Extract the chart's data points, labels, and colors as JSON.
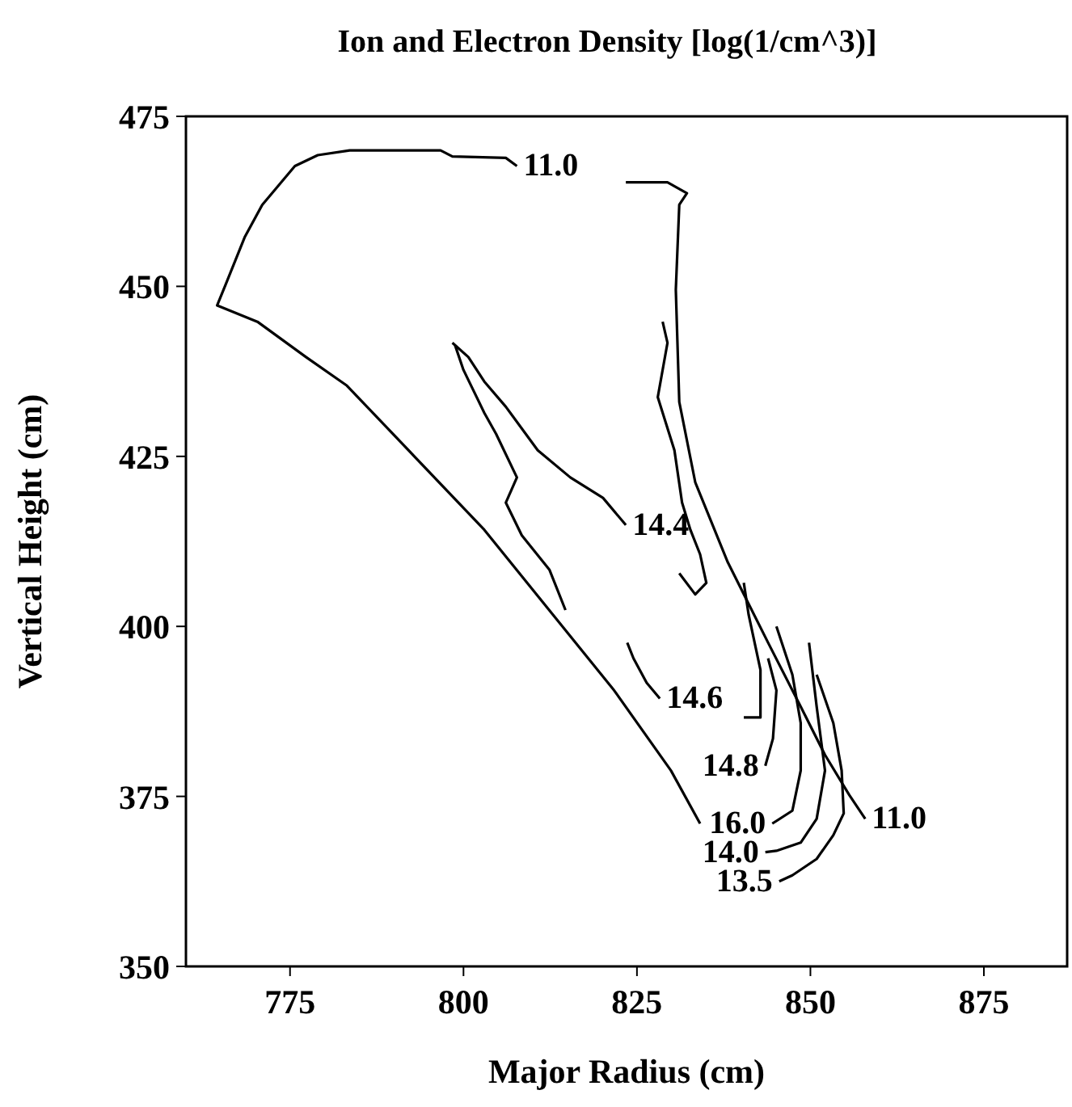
{
  "chart_data": {
    "type": "line",
    "title": "Ion and Electron Density [log(1/cm^3)]",
    "xlabel": "Major Radius (cm)",
    "ylabel": "Vertical Height (cm)",
    "xlim": [
      760,
      887
    ],
    "xticks": [
      775,
      800,
      825,
      850,
      875
    ],
    "ylim": [
      350,
      475
    ],
    "yticks": [
      350,
      375,
      400,
      425,
      450,
      475
    ],
    "marker": "none",
    "line_style": "solid",
    "series": [
      {
        "color": "#000000",
        "x": [
          834.1,
          829.9,
          821.7,
          803,
          783.2,
          777.3,
          770.3,
          764.5,
          765.7,
          768.5,
          771,
          775.7,
          779,
          783.6,
          796.7,
          798.4,
          806.1,
          807.7
        ],
        "values": [
          371,
          378.8,
          390.6,
          414.2,
          435.4,
          439.6,
          444.8,
          447.2,
          450.2,
          457.3,
          462,
          467.7,
          469.3,
          470,
          470,
          469.1,
          468.9,
          467.7
        ]
      },
      {
        "color": "#000000",
        "x": [
          823.4,
          829.4,
          832.2,
          831.1,
          830.6,
          831.1,
          833.4,
          838.1,
          843.9,
          848.6,
          852.1,
          855.6,
          857.9
        ],
        "values": [
          465.3,
          465.3,
          463.7,
          462,
          449.5,
          433,
          421.2,
          409.4,
          397.6,
          388.2,
          381.1,
          375.2,
          371.7
        ]
      },
      {
        "color": "#000000",
        "x": [
          828.7,
          829.4,
          828,
          830.4,
          831.5,
          832.7,
          834.1,
          835,
          833.4,
          831.1,
          null,
          798.4,
          800.7,
          803,
          806.1,
          810.7,
          815.4,
          820.1,
          823.4
        ],
        "values": [
          444.8,
          441.7,
          433.7,
          425.9,
          418.2,
          414.2,
          410.6,
          406.4,
          404.7,
          407.8,
          null,
          441.7,
          439.6,
          436,
          432.3,
          425.9,
          421.9,
          418.9,
          414.9
        ]
      },
      {
        "color": "#000000",
        "x": [
          798.8,
          800,
          803,
          804.7,
          807.7,
          806.1,
          808.4,
          812.4,
          814.7
        ],
        "values": [
          441.3,
          437.7,
          431.4,
          428.3,
          421.9,
          418.2,
          413.4,
          408.3,
          402.4
        ]
      },
      {
        "color": "#000000",
        "x": [
          840.4,
          841.1,
          842.8,
          842.8,
          840.4,
          null,
          823.6,
          824.5,
          826.4,
          828.3
        ],
        "values": [
          406.4,
          401.7,
          393.6,
          386.6,
          386.6,
          null,
          397.6,
          395.3,
          391.7,
          389.4
        ]
      },
      {
        "color": "#000000",
        "x": [
          843.5,
          844.6,
          845.1,
          843.9
        ],
        "values": [
          379.5,
          383.5,
          390.6,
          395.3
        ]
      },
      {
        "color": "#000000",
        "x": [
          844.5,
          847.4,
          848.6,
          848.6,
          847.4,
          845.1
        ],
        "values": [
          371,
          372.9,
          378.8,
          385.8,
          392.9,
          400
        ]
      },
      {
        "color": "#000000",
        "x": [
          843.5,
          845.1,
          848.6,
          850.9,
          852.1,
          850.9,
          849.8
        ],
        "values": [
          366.8,
          367,
          368.2,
          371.7,
          378.8,
          388.2,
          397.6
        ]
      },
      {
        "color": "#000000",
        "x": [
          845.5,
          847.4,
          850.9,
          853.3,
          854.8,
          854.5,
          853.3,
          850.9
        ],
        "values": [
          362.5,
          363.4,
          365.8,
          369.3,
          372.5,
          378.8,
          385.8,
          392.9
        ]
      }
    ],
    "annotations": [
      {
        "text": "11.0",
        "x": 807.7,
        "y": 467.7
      },
      {
        "text": "14.4",
        "x": 823.4,
        "y": 414.9
      },
      {
        "text": "14.6",
        "x": 828.3,
        "y": 389.4
      },
      {
        "text": "14.8",
        "x": 843.5,
        "y": 379.5
      },
      {
        "text": "16.0",
        "x": 844.5,
        "y": 371
      },
      {
        "text": "11.0",
        "x": 857.9,
        "y": 371.7
      },
      {
        "text": "14.0",
        "x": 843.5,
        "y": 366.8
      },
      {
        "text": "13.5",
        "x": 845.5,
        "y": 362.5
      }
    ]
  }
}
